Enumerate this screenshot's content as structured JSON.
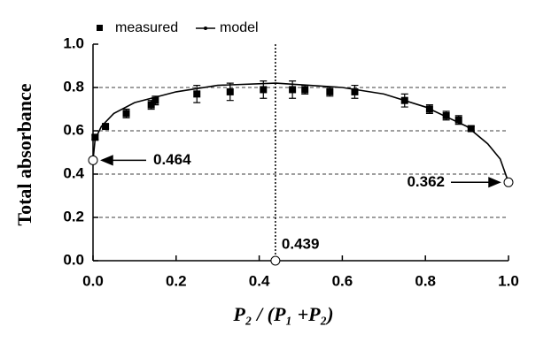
{
  "chart_data": {
    "type": "scatter-line",
    "x_label": "P₂ / (P₁ +P₂)",
    "y_label": "Total absorbance",
    "xlim": [
      0,
      1.0
    ],
    "ylim": [
      0,
      1.0
    ],
    "xticks": [
      {
        "value": 0,
        "label": "0.0"
      },
      0.2,
      0.4,
      0.6,
      0.8,
      {
        "value": 1.0,
        "label": "1.0"
      }
    ],
    "yticks": [
      {
        "value": 0,
        "label": "0.0"
      },
      0.2,
      0.4,
      0.6,
      0.8,
      {
        "value": 1.0,
        "label": "1.0"
      }
    ],
    "grid": true,
    "series": [
      {
        "name": "measured",
        "color": "#000000",
        "x": [
          0.005,
          0.03,
          0.08,
          0.14,
          0.15,
          0.25,
          0.33,
          0.41,
          0.48,
          0.51,
          0.57,
          0.63,
          0.75,
          0.81,
          0.85,
          0.88,
          0.91
        ],
        "values": [
          0.57,
          0.62,
          0.68,
          0.72,
          0.74,
          0.77,
          0.78,
          0.79,
          0.79,
          0.79,
          0.78,
          0.78,
          0.74,
          0.7,
          0.67,
          0.65,
          0.61
        ],
        "errors": [
          0.01,
          0.01,
          0.02,
          0.02,
          0.02,
          0.04,
          0.04,
          0.04,
          0.04,
          0.02,
          0.02,
          0.03,
          0.03,
          0.02,
          0.02,
          0.02,
          0.01
        ]
      },
      {
        "name": "model",
        "color": "#000000",
        "x": [
          0,
          0.005,
          0.02,
          0.05,
          0.1,
          0.2,
          0.3,
          0.44,
          0.6,
          0.7,
          0.8,
          0.9,
          0.95,
          0.98,
          1.0
        ],
        "values": [
          0.464,
          0.56,
          0.62,
          0.68,
          0.73,
          0.78,
          0.81,
          0.82,
          0.8,
          0.77,
          0.71,
          0.62,
          0.54,
          0.47,
          0.362
        ]
      }
    ],
    "markers": [
      {
        "x": 0,
        "y": 0.464
      },
      {
        "x": 1.0,
        "y": 0.362
      },
      {
        "x": 0.439,
        "y": 0
      }
    ]
  }
}
